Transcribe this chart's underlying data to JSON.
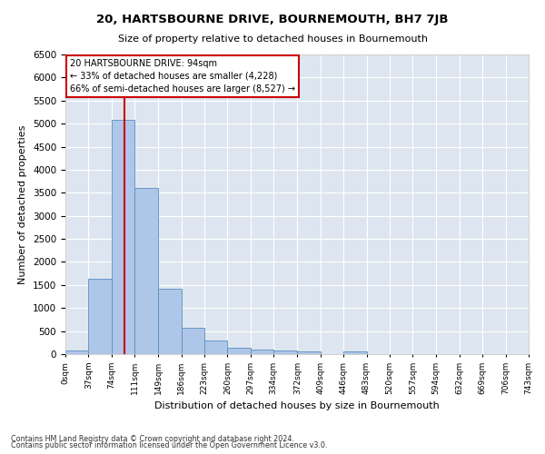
{
  "title": "20, HARTSBOURNE DRIVE, BOURNEMOUTH, BH7 7JB",
  "subtitle": "Size of property relative to detached houses in Bournemouth",
  "xlabel": "Distribution of detached houses by size in Bournemouth",
  "ylabel": "Number of detached properties",
  "footnote1": "Contains HM Land Registry data © Crown copyright and database right 2024.",
  "footnote2": "Contains public sector information licensed under the Open Government Licence v3.0.",
  "annotation_line1": "20 HARTSBOURNE DRIVE: 94sqm",
  "annotation_line2": "← 33% of detached houses are smaller (4,228)",
  "annotation_line3": "66% of semi-detached houses are larger (8,527) →",
  "property_size": 94,
  "bar_labels": [
    "0sqm",
    "37sqm",
    "74sqm",
    "111sqm",
    "149sqm",
    "186sqm",
    "223sqm",
    "260sqm",
    "297sqm",
    "334sqm",
    "372sqm",
    "409sqm",
    "446sqm",
    "483sqm",
    "520sqm",
    "557sqm",
    "594sqm",
    "632sqm",
    "669sqm",
    "706sqm",
    "743sqm"
  ],
  "bar_edges": [
    0,
    37,
    74,
    111,
    149,
    186,
    223,
    260,
    297,
    334,
    372,
    409,
    446,
    483,
    520,
    557,
    594,
    632,
    669,
    706,
    743
  ],
  "bar_values": [
    70,
    1630,
    5080,
    3600,
    1410,
    580,
    290,
    140,
    105,
    70,
    55,
    0,
    60,
    0,
    0,
    0,
    0,
    0,
    0,
    0
  ],
  "bar_color": "#aec6e8",
  "bar_edge_color": "#5a8fc0",
  "vline_color": "#cc0000",
  "vline_x": 94,
  "ylim": [
    0,
    6500
  ],
  "xlim_max": 743,
  "background_color": "#dde6f0",
  "grid_color": "#ffffff",
  "annotation_box_color": "#cc0000",
  "fig_bg": "#ffffff",
  "yticks": [
    0,
    500,
    1000,
    1500,
    2000,
    2500,
    3000,
    3500,
    4000,
    4500,
    5000,
    5500,
    6000,
    6500
  ]
}
